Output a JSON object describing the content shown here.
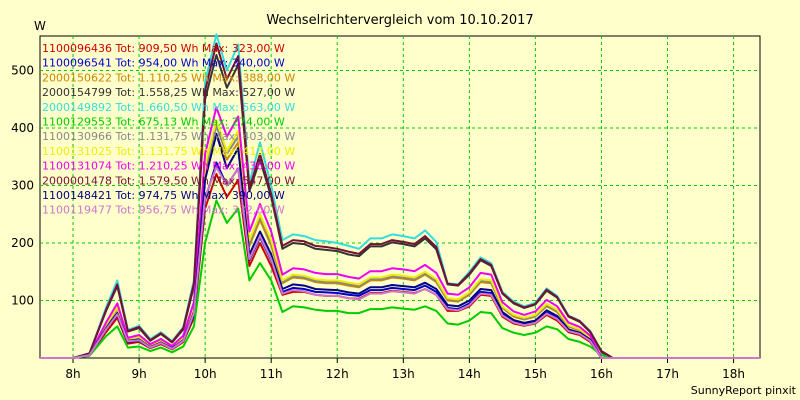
{
  "chart_data": {
    "type": "line",
    "title": "Wechselrichtervergleich vom 10.10.2017",
    "ylabel": "W",
    "footer": "SunnyReport pinxit",
    "ylim": [
      0,
      560
    ],
    "xlim": [
      7.5,
      18.4
    ],
    "yticks": [
      100,
      200,
      300,
      400,
      500
    ],
    "xticks": [
      {
        "v": 8,
        "label": "8h"
      },
      {
        "v": 9,
        "label": "9h"
      },
      {
        "v": 10,
        "label": "10h"
      },
      {
        "v": 11,
        "label": "11h"
      },
      {
        "v": 12,
        "label": "12h"
      },
      {
        "v": 13,
        "label": "13h"
      },
      {
        "v": 14,
        "label": "14h"
      },
      {
        "v": 15,
        "label": "15h"
      },
      {
        "v": 16,
        "label": "16h"
      },
      {
        "v": 17,
        "label": "17h"
      },
      {
        "v": 18,
        "label": "18h"
      }
    ],
    "x": [
      7.5,
      7.75,
      8.0,
      8.25,
      8.5,
      8.67,
      8.83,
      9.0,
      9.17,
      9.33,
      9.5,
      9.67,
      9.83,
      10.0,
      10.17,
      10.33,
      10.5,
      10.67,
      10.83,
      11.0,
      11.17,
      11.33,
      11.5,
      11.67,
      11.83,
      12.0,
      12.17,
      12.33,
      12.5,
      12.67,
      12.83,
      13.0,
      13.17,
      13.33,
      13.5,
      13.67,
      13.83,
      14.0,
      14.17,
      14.33,
      14.5,
      14.67,
      14.83,
      15.0,
      15.17,
      15.33,
      15.5,
      15.67,
      15.83,
      16.0,
      16.17,
      16.33,
      16.5,
      16.67,
      16.83,
      17.0,
      17.17,
      17.33,
      17.5,
      17.67,
      17.83,
      18.0,
      18.17,
      18.4
    ],
    "series": [
      {
        "name": "1100096436 Tot: 909,50 Wh Max: 323,00 W",
        "color": "#cc0000",
        "values": [
          0,
          0,
          0,
          5,
          45,
          70,
          25,
          28,
          17,
          24,
          15,
          28,
          70,
          260,
          320,
          280,
          310,
          160,
          200,
          160,
          110,
          115,
          115,
          110,
          108,
          108,
          104,
          103,
          113,
          113,
          117,
          115,
          113,
          120,
          110,
          82,
          82,
          90,
          110,
          108,
          72,
          60,
          56,
          60,
          75,
          65,
          45,
          40,
          28,
          0,
          0,
          0,
          0,
          0,
          0,
          0,
          0,
          0,
          0,
          0,
          0,
          0,
          0,
          0
        ]
      },
      {
        "name": "1100096541 Tot: 954,00 Wh Max: 340,00 W",
        "color": "#0000cc",
        "values": [
          0,
          0,
          0,
          5,
          50,
          75,
          28,
          30,
          18,
          26,
          16,
          30,
          75,
          275,
          340,
          300,
          330,
          170,
          210,
          170,
          115,
          122,
          120,
          115,
          114,
          113,
          110,
          108,
          118,
          118,
          122,
          120,
          118,
          126,
          115,
          87,
          85,
          95,
          115,
          113,
          76,
          63,
          58,
          62,
          79,
          70,
          47,
          42,
          30,
          0,
          0,
          0,
          0,
          0,
          0,
          0,
          0,
          0,
          0,
          0,
          0,
          0,
          0,
          0
        ]
      },
      {
        "name": "2000150622 Tot: 1.110,25 Wh Max: 388,00 W",
        "color": "#cc8800",
        "values": [
          0,
          0,
          0,
          5,
          56,
          85,
          32,
          35,
          20,
          29,
          18,
          34,
          86,
          320,
          388,
          345,
          375,
          195,
          240,
          195,
          130,
          140,
          138,
          132,
          130,
          130,
          126,
          123,
          135,
          135,
          140,
          138,
          135,
          145,
          132,
          100,
          98,
          110,
          132,
          130,
          87,
          72,
          67,
          72,
          90,
          80,
          55,
          48,
          34,
          0,
          0,
          0,
          0,
          0,
          0,
          0,
          0,
          0,
          0,
          0,
          0,
          0,
          0,
          0
        ]
      },
      {
        "name": "2000154799 Tot: 1.558,25 Wh Max: 527,00 W",
        "color": "#333333",
        "values": [
          0,
          0,
          0,
          8,
          82,
          125,
          46,
          52,
          30,
          42,
          27,
          50,
          125,
          450,
          527,
          470,
          510,
          290,
          345,
          280,
          190,
          200,
          198,
          190,
          188,
          186,
          180,
          177,
          194,
          194,
          201,
          198,
          194,
          208,
          189,
          128,
          126,
          145,
          170,
          160,
          112,
          95,
          87,
          93,
          117,
          105,
          72,
          63,
          45,
          10,
          0,
          0,
          0,
          0,
          0,
          0,
          0,
          0,
          0,
          0,
          0,
          0,
          0,
          0
        ]
      },
      {
        "name": "2000149892 Tot: 1.660,50 Wh Max: 563,00 W",
        "color": "#33dddd",
        "values": [
          0,
          0,
          0,
          8,
          88,
          135,
          49,
          56,
          33,
          45,
          29,
          54,
          135,
          480,
          563,
          500,
          545,
          305,
          375,
          300,
          205,
          215,
          212,
          205,
          203,
          200,
          195,
          190,
          208,
          208,
          215,
          212,
          208,
          222,
          202,
          130,
          128,
          150,
          175,
          165,
          115,
          98,
          90,
          96,
          121,
          108,
          74,
          65,
          47,
          12,
          0,
          0,
          0,
          0,
          0,
          0,
          0,
          0,
          0,
          0,
          0,
          0,
          0,
          0
        ]
      },
      {
        "name": "1100129553 Tot: 675,13 Wh Max: 274,00 W",
        "color": "#00cc00",
        "values": [
          0,
          0,
          0,
          4,
          38,
          55,
          18,
          20,
          12,
          18,
          10,
          20,
          55,
          200,
          274,
          235,
          260,
          135,
          165,
          135,
          80,
          90,
          88,
          84,
          82,
          82,
          78,
          78,
          85,
          85,
          88,
          86,
          84,
          90,
          82,
          60,
          58,
          65,
          80,
          78,
          52,
          44,
          40,
          44,
          55,
          50,
          33,
          28,
          20,
          5,
          0,
          0,
          0,
          0,
          0,
          0,
          0,
          0,
          0,
          0,
          0,
          0,
          0,
          0
        ]
      },
      {
        "name": "1100130966 Tot: 1.131,75 Wh Max: 403,00 W",
        "color": "#888888",
        "values": [
          0,
          0,
          0,
          5,
          56,
          86,
          32,
          36,
          21,
          30,
          19,
          35,
          88,
          330,
          403,
          355,
          385,
          200,
          245,
          200,
          132,
          142,
          140,
          134,
          132,
          132,
          128,
          125,
          137,
          137,
          142,
          140,
          137,
          147,
          134,
          102,
          100,
          112,
          134,
          132,
          88,
          74,
          68,
          73,
          92,
          82,
          56,
          49,
          35,
          0,
          0,
          0,
          0,
          0,
          0,
          0,
          0,
          0,
          0,
          0,
          0,
          0,
          0,
          0
        ]
      },
      {
        "name": "1100131025 Tot: 1.131,75 Wh Max: 413,00 W",
        "color": "#eeee00",
        "values": [
          0,
          0,
          0,
          5,
          58,
          88,
          33,
          37,
          22,
          31,
          19,
          36,
          90,
          335,
          413,
          360,
          395,
          205,
          250,
          205,
          135,
          145,
          143,
          137,
          135,
          135,
          131,
          128,
          140,
          140,
          145,
          143,
          140,
          150,
          137,
          104,
          102,
          114,
          137,
          135,
          90,
          75,
          70,
          75,
          94,
          84,
          57,
          50,
          36,
          0,
          0,
          0,
          0,
          0,
          0,
          0,
          0,
          0,
          0,
          0,
          0,
          0,
          0,
          0
        ]
      },
      {
        "name": "1100131074 Tot: 1.210,25 Wh Max: 436,00 W",
        "color": "#ee00ee",
        "values": [
          0,
          0,
          0,
          6,
          62,
          95,
          35,
          40,
          24,
          33,
          21,
          39,
          97,
          355,
          436,
          385,
          420,
          220,
          268,
          220,
          145,
          156,
          154,
          148,
          146,
          146,
          141,
          138,
          151,
          151,
          156,
          154,
          151,
          162,
          148,
          112,
          110,
          123,
          148,
          145,
          97,
          81,
          75,
          81,
          101,
          90,
          62,
          54,
          39,
          0,
          0,
          0,
          0,
          0,
          0,
          0,
          0,
          0,
          0,
          0,
          0,
          0,
          0,
          0
        ]
      },
      {
        "name": "2000001478 Tot: 1.579,50 Wh Max: 547,00 W",
        "color": "#771133",
        "values": [
          0,
          0,
          0,
          8,
          84,
          128,
          47,
          54,
          31,
          43,
          28,
          52,
          130,
          465,
          547,
          485,
          525,
          295,
          355,
          285,
          195,
          205,
          203,
          195,
          193,
          190,
          185,
          181,
          198,
          198,
          205,
          202,
          198,
          212,
          193,
          129,
          127,
          147,
          172,
          162,
          113,
          96,
          88,
          94,
          119,
          106,
          73,
          64,
          46,
          12,
          0,
          0,
          0,
          0,
          0,
          0,
          0,
          0,
          0,
          0,
          0,
          0,
          0,
          0
        ]
      },
      {
        "name": "1100148421 Tot: 974,75 Wh Max: 390,00 W",
        "color": "#000088",
        "values": [
          0,
          0,
          0,
          5,
          52,
          78,
          30,
          32,
          19,
          27,
          17,
          31,
          80,
          310,
          390,
          330,
          365,
          180,
          220,
          180,
          120,
          128,
          126,
          120,
          119,
          118,
          114,
          112,
          123,
          123,
          127,
          125,
          123,
          131,
          120,
          92,
          90,
          100,
          120,
          118,
          80,
          66,
          61,
          65,
          83,
          73,
          50,
          44,
          32,
          0,
          0,
          0,
          0,
          0,
          0,
          0,
          0,
          0,
          0,
          0,
          0,
          0,
          0,
          0
        ]
      },
      {
        "name": "1100119477 Tot: 956,75 Wh Max: 332,00 W",
        "color": "#cc77cc",
        "values": [
          0,
          0,
          0,
          5,
          50,
          76,
          29,
          31,
          18,
          26,
          16,
          30,
          78,
          280,
          332,
          300,
          330,
          172,
          212,
          172,
          112,
          118,
          116,
          110,
          108,
          108,
          104,
          102,
          112,
          112,
          116,
          114,
          112,
          120,
          110,
          85,
          83,
          92,
          112,
          110,
          74,
          62,
          57,
          61,
          77,
          68,
          47,
          42,
          30,
          0,
          0,
          0,
          0,
          0,
          0,
          0,
          0,
          0,
          0,
          0,
          0,
          0,
          0,
          0
        ]
      }
    ]
  }
}
